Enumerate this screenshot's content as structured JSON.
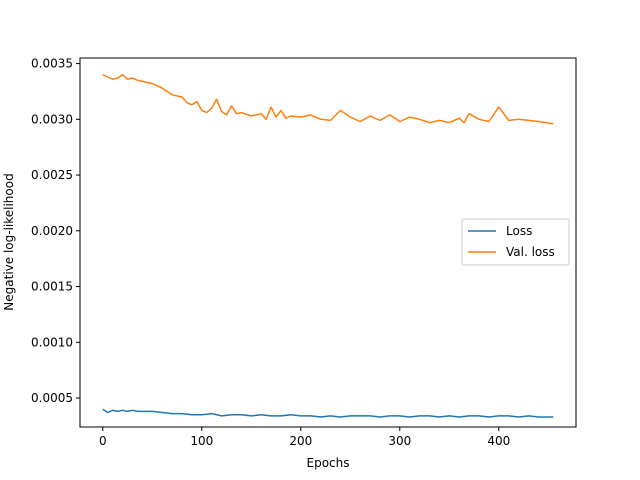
{
  "chart_data": {
    "type": "line",
    "title": "",
    "xlabel": "Epochs",
    "ylabel": "Negative log-likelihood",
    "xlim": [
      -23,
      478
    ],
    "ylim": [
      0.00024,
      0.00355
    ],
    "xticks": [
      0,
      100,
      200,
      300,
      400
    ],
    "yticks": [
      0.0005,
      0.001,
      0.0015,
      0.002,
      0.0025,
      0.003,
      0.0035
    ],
    "ytick_labels": [
      "0.0005",
      "0.0010",
      "0.0015",
      "0.0020",
      "0.0025",
      "0.0030",
      "0.0035"
    ],
    "grid": false,
    "legend": "center-right",
    "series": [
      {
        "name": "Loss",
        "color": "#1f77b4",
        "x": [
          0,
          5,
          10,
          15,
          20,
          25,
          30,
          35,
          40,
          50,
          60,
          70,
          80,
          90,
          100,
          110,
          120,
          130,
          140,
          150,
          160,
          170,
          180,
          190,
          200,
          210,
          220,
          230,
          240,
          250,
          260,
          270,
          280,
          290,
          300,
          310,
          320,
          330,
          340,
          350,
          360,
          370,
          380,
          390,
          400,
          410,
          420,
          430,
          440,
          455
        ],
        "y": [
          0.0004,
          0.00037,
          0.00039,
          0.00038,
          0.00039,
          0.00038,
          0.00039,
          0.00038,
          0.00038,
          0.00038,
          0.00037,
          0.00036,
          0.00036,
          0.00035,
          0.00035,
          0.00036,
          0.00034,
          0.00035,
          0.00035,
          0.00034,
          0.00035,
          0.00034,
          0.00034,
          0.00035,
          0.00034,
          0.00034,
          0.00033,
          0.00034,
          0.00033,
          0.00034,
          0.00034,
          0.00034,
          0.00033,
          0.00034,
          0.00034,
          0.00033,
          0.00034,
          0.00034,
          0.00033,
          0.00034,
          0.00033,
          0.00034,
          0.00034,
          0.00033,
          0.00034,
          0.00034,
          0.00033,
          0.00034,
          0.00033,
          0.00033
        ]
      },
      {
        "name": "Val. loss",
        "color": "#ff7f0e",
        "x": [
          0,
          5,
          10,
          15,
          20,
          25,
          30,
          35,
          40,
          50,
          60,
          70,
          80,
          85,
          90,
          95,
          100,
          105,
          110,
          115,
          120,
          125,
          130,
          135,
          140,
          150,
          160,
          165,
          170,
          175,
          180,
          185,
          190,
          200,
          210,
          220,
          230,
          240,
          250,
          260,
          270,
          280,
          290,
          300,
          310,
          320,
          330,
          340,
          350,
          360,
          365,
          370,
          380,
          390,
          400,
          405,
          410,
          420,
          430,
          440,
          455
        ],
        "y": [
          0.0034,
          0.00338,
          0.00336,
          0.00337,
          0.0034,
          0.00336,
          0.00337,
          0.00335,
          0.00334,
          0.00332,
          0.00328,
          0.00322,
          0.0032,
          0.00315,
          0.00313,
          0.00316,
          0.00308,
          0.00306,
          0.0031,
          0.00318,
          0.00307,
          0.00304,
          0.00312,
          0.00305,
          0.00306,
          0.00303,
          0.00305,
          0.003,
          0.00311,
          0.00302,
          0.00308,
          0.00301,
          0.00303,
          0.00302,
          0.00304,
          0.003,
          0.00299,
          0.00308,
          0.00302,
          0.00298,
          0.00303,
          0.00299,
          0.00304,
          0.00298,
          0.00302,
          0.003,
          0.00297,
          0.00299,
          0.00297,
          0.00301,
          0.00297,
          0.00305,
          0.003,
          0.00298,
          0.00311,
          0.00305,
          0.00299,
          0.003,
          0.00299,
          0.00298,
          0.00296
        ]
      }
    ]
  }
}
